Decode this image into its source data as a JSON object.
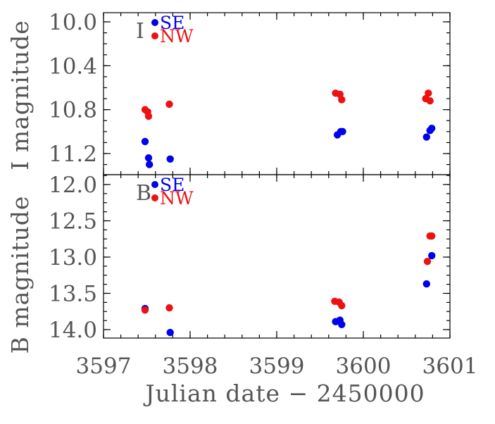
{
  "chart_data": [
    {
      "type": "scatter",
      "panel": "top",
      "panel_label": "I",
      "ylabel": "I magnitude",
      "xlim": [
        3597,
        3601
      ],
      "ylim": [
        10.0,
        11.35
      ],
      "y_inverted": true,
      "yticks": [
        10.0,
        10.4,
        10.8,
        11.2
      ],
      "ytick_labels": [
        "10.0",
        "10.4",
        "10.8",
        "11.2"
      ],
      "legend": [
        {
          "label": "SE",
          "color": "#0000ee"
        },
        {
          "label": "NW",
          "color": "#ee1111"
        }
      ],
      "series": [
        {
          "name": "SE",
          "color": "#0000ee",
          "x": [
            3597.48,
            3597.52,
            3597.53,
            3597.77,
            3599.7,
            3599.74,
            3599.76,
            3600.73,
            3600.77,
            3600.79
          ],
          "y": [
            11.09,
            11.24,
            11.3,
            11.25,
            11.03,
            11.0,
            11.0,
            11.05,
            10.99,
            10.97
          ]
        },
        {
          "name": "NW",
          "color": "#ee1111",
          "x": [
            3597.48,
            3597.51,
            3597.52,
            3597.76,
            3599.68,
            3599.73,
            3599.75,
            3600.72,
            3600.75,
            3600.77
          ],
          "y": [
            10.8,
            10.82,
            10.86,
            10.75,
            10.65,
            10.66,
            10.71,
            10.7,
            10.65,
            10.72
          ]
        }
      ]
    },
    {
      "type": "scatter",
      "panel": "bottom",
      "panel_label": "B",
      "ylabel": "B magnitude",
      "xlim": [
        3597,
        3601
      ],
      "ylim": [
        11.95,
        14.05
      ],
      "y_inverted": true,
      "yticks": [
        12.0,
        12.5,
        13.0,
        13.5,
        14.0
      ],
      "ytick_labels": [
        "12.0",
        "12.5",
        "13.0",
        "13.5",
        "14.0"
      ],
      "legend": [
        {
          "label": "SE",
          "color": "#0000ee"
        },
        {
          "label": "NW",
          "color": "#ee1111"
        }
      ],
      "series": [
        {
          "name": "SE",
          "color": "#0000ee",
          "x": [
            3597.48,
            3597.77,
            3599.68,
            3599.73,
            3599.75,
            3600.73,
            3600.79
          ],
          "y": [
            13.71,
            14.04,
            13.89,
            13.87,
            13.93,
            13.37,
            12.98
          ]
        },
        {
          "name": "NW",
          "color": "#ee1111",
          "x": [
            3597.48,
            3597.76,
            3599.67,
            3599.72,
            3599.75,
            3600.74,
            3600.77,
            3600.79
          ],
          "y": [
            13.73,
            13.7,
            13.61,
            13.62,
            13.67,
            13.06,
            12.71,
            12.71
          ]
        }
      ]
    }
  ],
  "x_axis": {
    "label": "Julian date − 2450000",
    "ticks": [
      3597,
      3598,
      3599,
      3600,
      3601
    ],
    "tick_labels": [
      "3597",
      "3598",
      "3599",
      "3600",
      "3601"
    ]
  }
}
